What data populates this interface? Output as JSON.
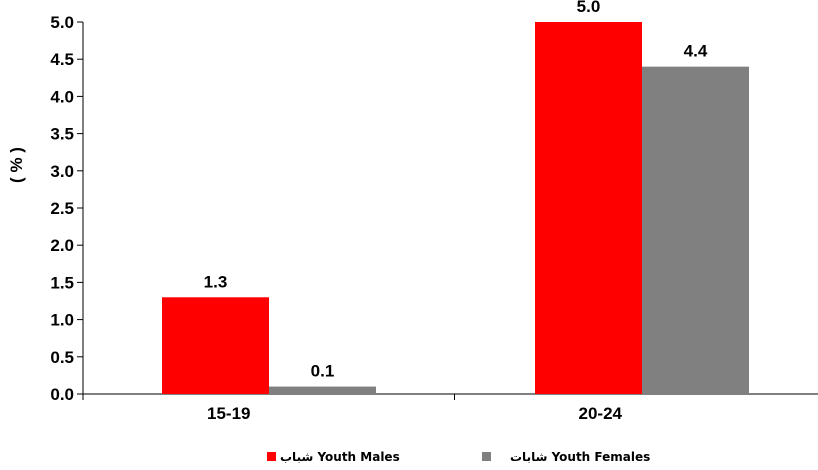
{
  "chart_data": {
    "type": "bar",
    "categories": [
      "15-19",
      "20-24"
    ],
    "series": [
      {
        "name": "شباب Youth Males",
        "values": [
          1.3,
          5.0
        ],
        "labels": [
          "1.3",
          "5.0"
        ],
        "color": "#ff0000"
      },
      {
        "name": "شابات Youth Females",
        "values": [
          0.1,
          4.4
        ],
        "labels": [
          "0.1",
          "4.4"
        ],
        "color": "#808080"
      }
    ],
    "ylabel": "( % )",
    "ylim": [
      0,
      5.0
    ],
    "yticks": [
      "0.0",
      "0.5",
      "1.0",
      "1.5",
      "2.0",
      "2.5",
      "3.0",
      "3.5",
      "4.0",
      "4.5",
      "5.0"
    ],
    "grid": false,
    "legend_position": "bottom"
  }
}
